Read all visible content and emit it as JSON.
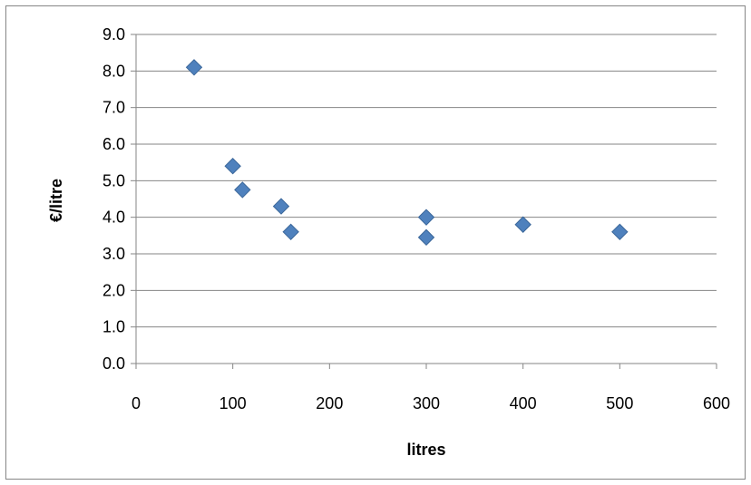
{
  "chart_data": {
    "type": "scatter",
    "title": "",
    "xlabel": "litres",
    "ylabel": "€/litre",
    "xlim": [
      0,
      600
    ],
    "ylim": [
      0,
      9
    ],
    "x_ticks": [
      "0",
      "100",
      "200",
      "300",
      "400",
      "500",
      "600"
    ],
    "y_ticks": [
      "0.0",
      "1.0",
      "2.0",
      "3.0",
      "4.0",
      "5.0",
      "6.0",
      "7.0",
      "8.0",
      "9.0"
    ],
    "grid": "horizontal",
    "legend": "none",
    "series": [
      {
        "marker": "diamond",
        "color": "#4F81BD",
        "points": [
          {
            "x": 60,
            "y": 8.1
          },
          {
            "x": 100,
            "y": 5.4
          },
          {
            "x": 110,
            "y": 4.75
          },
          {
            "x": 150,
            "y": 4.3
          },
          {
            "x": 160,
            "y": 3.6
          },
          {
            "x": 300,
            "y": 4.0
          },
          {
            "x": 300,
            "y": 3.45
          },
          {
            "x": 400,
            "y": 3.8
          },
          {
            "x": 500,
            "y": 3.6
          }
        ]
      }
    ]
  }
}
